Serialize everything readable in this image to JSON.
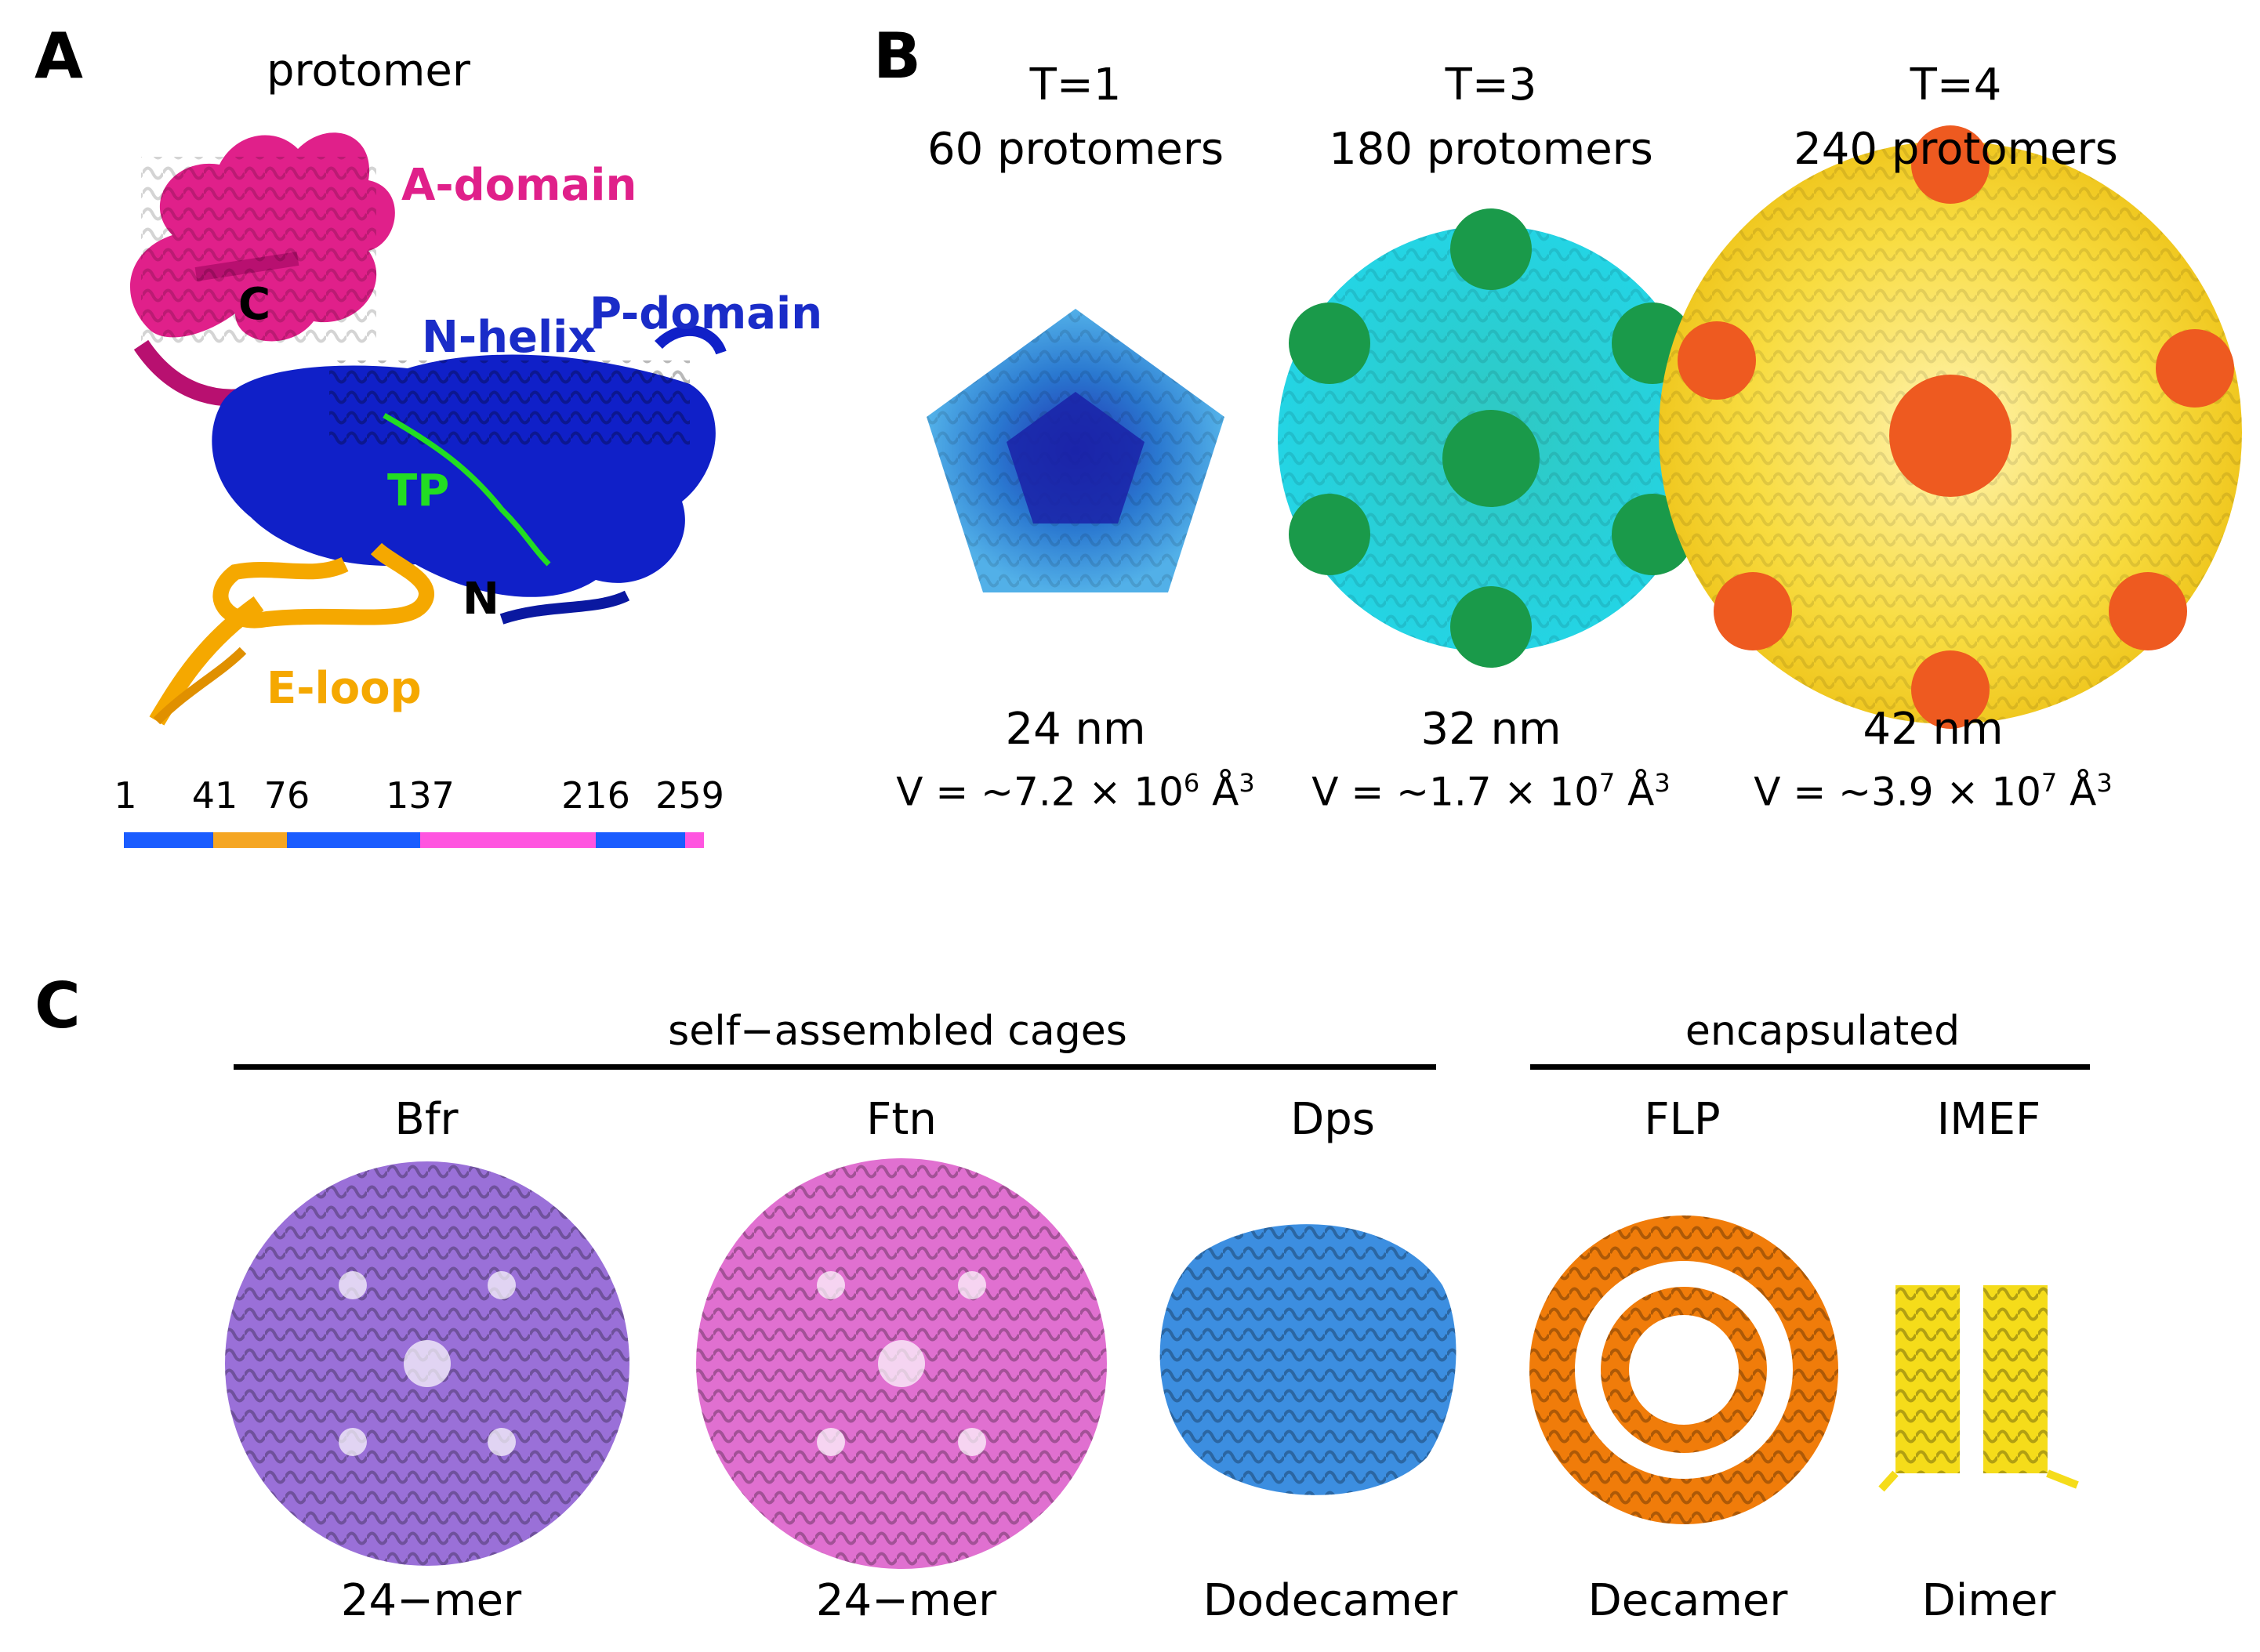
{
  "panel_a": {
    "letter": "A",
    "title": "protomer",
    "labels": {
      "a_domain": "A-domain",
      "c_term": "C",
      "n_helix": "N-helix",
      "p_domain": "P-domain",
      "tp": "TP",
      "n_term": "N",
      "e_loop": "E-loop"
    },
    "sequence_ticks": [
      "1",
      "41",
      "76",
      "137",
      "216",
      "259"
    ],
    "colors": {
      "a_domain": "#e0208a",
      "p_domain": "#1020c8",
      "tp": "#22dd22",
      "e_loop": "#f5a800",
      "bar_blue": "#1a5cff",
      "bar_orange": "#f5a623",
      "bar_pink": "#ff55e0"
    }
  },
  "panel_b": {
    "letter": "B",
    "capsids": [
      {
        "t": "T=1",
        "protomers": "60 protomers",
        "size": "24 nm",
        "volume_prefix": "V = ~7.2 × 10",
        "volume_exp": "6",
        "volume_unit": " Å",
        "volume_unit_exp": "3"
      },
      {
        "t": "T=3",
        "protomers": "180 protomers",
        "size": "32 nm",
        "volume_prefix": "V = ~1.7 × 10",
        "volume_exp": "7",
        "volume_unit": " Å",
        "volume_unit_exp": "3"
      },
      {
        "t": "T=4",
        "protomers": "240 protomers",
        "size": "42 nm",
        "volume_prefix": "V = ~3.9 × 10",
        "volume_exp": "7",
        "volume_unit": " Å",
        "volume_unit_exp": "3"
      }
    ]
  },
  "panel_c": {
    "letter": "C",
    "group_self": "self−assembled cages",
    "group_encap": "encapsulated",
    "proteins": [
      {
        "name": "Bfr",
        "oligomer": "24−mer",
        "color": "#9a70d8"
      },
      {
        "name": "Ftn",
        "oligomer": "24−mer",
        "color": "#e070d0"
      },
      {
        "name": "Dps",
        "oligomer": "Dodecamer",
        "color": "#3c8ee0"
      },
      {
        "name": "FLP",
        "oligomer": "Decamer",
        "color": "#f07c0a"
      },
      {
        "name": "IMEF",
        "oligomer": "Dimer",
        "color": "#f5dc1a"
      }
    ]
  }
}
